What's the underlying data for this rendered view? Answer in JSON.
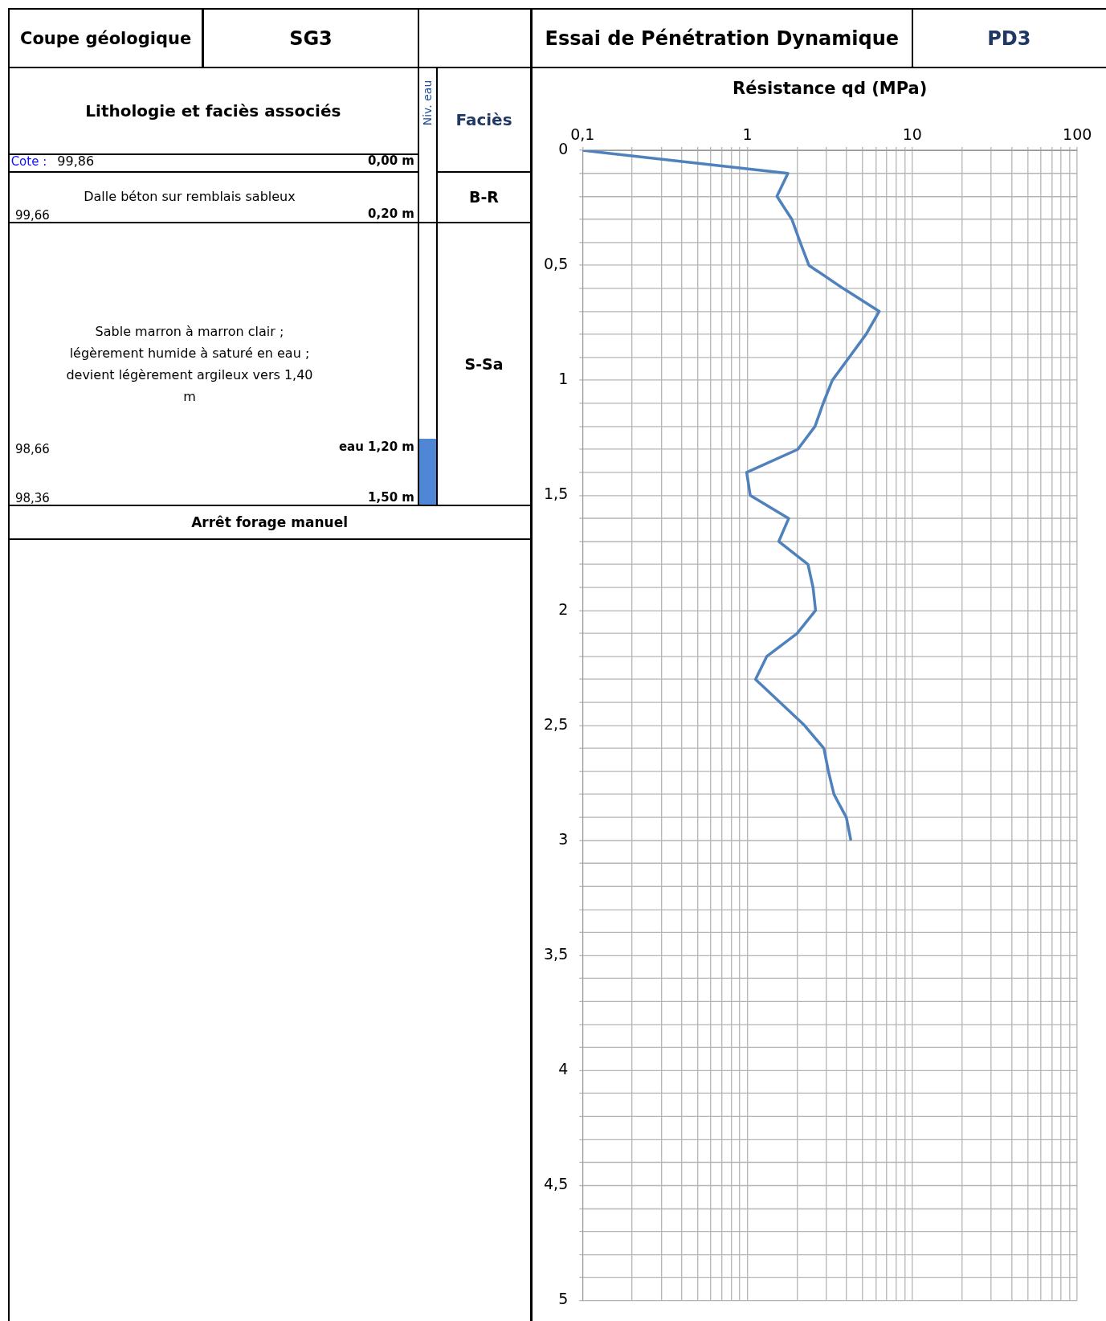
{
  "chart_data": [
    {
      "type": "other",
      "title": "Coupe géologique",
      "subtitle": "SG3",
      "annotations": [
        "Lithologie et faciès associés",
        "Niv. eau",
        "Faciès",
        "Cote :",
        "99,86",
        "0,00 m",
        "Dalle béton sur remblais sableux",
        "B-R",
        "99,66",
        "0,20 m",
        "Sable marron à marron clair ; légèrement humide à saturé en eau ; devient légèrement argileux vers 1,40 m",
        "S-Sa",
        "98,66",
        "eau 1,20 m",
        "98,36",
        "1,50 m",
        "Arrêt forage manuel"
      ]
    },
    {
      "type": "line",
      "title": "Essai de Pénétration Dynamique",
      "subtitle": "PD3",
      "xlabel": "Résistance qd (MPa)",
      "log": "x",
      "grid": true,
      "legend": false,
      "marker": "none",
      "line_style": "solid",
      "xlim": [
        0.1,
        100
      ],
      "ylim": [
        5,
        0
      ],
      "xticks": [
        {
          "value": 0.1,
          "label": "0,1"
        },
        {
          "value": 0.2,
          "label": null
        },
        {
          "value": 0.3,
          "label": null
        },
        {
          "value": 0.4,
          "label": null
        },
        {
          "value": 0.5,
          "label": null
        },
        {
          "value": 0.6,
          "label": null
        },
        {
          "value": 0.7,
          "label": null
        },
        {
          "value": 0.8,
          "label": null
        },
        {
          "value": 0.9,
          "label": null
        },
        1,
        {
          "value": 2,
          "label": null
        },
        {
          "value": 3,
          "label": null
        },
        {
          "value": 4,
          "label": null
        },
        {
          "value": 5,
          "label": null
        },
        {
          "value": 6,
          "label": null
        },
        {
          "value": 7,
          "label": null
        },
        {
          "value": 8,
          "label": null
        },
        {
          "value": 9,
          "label": null
        },
        10,
        {
          "value": 20,
          "label": null
        },
        {
          "value": 30,
          "label": null
        },
        {
          "value": 40,
          "label": null
        },
        {
          "value": 50,
          "label": null
        },
        {
          "value": 60,
          "label": null
        },
        {
          "value": 70,
          "label": null
        },
        {
          "value": 80,
          "label": null
        },
        {
          "value": 90,
          "label": null
        },
        100
      ],
      "yticks": [
        0,
        {
          "value": 0.1,
          "label": null
        },
        {
          "value": 0.2,
          "label": null
        },
        {
          "value": 0.3,
          "label": null
        },
        {
          "value": 0.4,
          "label": null
        },
        {
          "value": 0.5,
          "label": "0,5"
        },
        {
          "value": 0.6,
          "label": null
        },
        {
          "value": 0.7,
          "label": null
        },
        {
          "value": 0.8,
          "label": null
        },
        {
          "value": 0.9,
          "label": null
        },
        1,
        {
          "value": 1.1,
          "label": null
        },
        {
          "value": 1.2,
          "label": null
        },
        {
          "value": 1.3,
          "label": null
        },
        {
          "value": 1.4,
          "label": null
        },
        {
          "value": 1.5,
          "label": "1,5"
        },
        {
          "value": 1.6,
          "label": null
        },
        {
          "value": 1.7,
          "label": null
        },
        {
          "value": 1.8,
          "label": null
        },
        {
          "value": 1.9,
          "label": null
        },
        2,
        {
          "value": 2.1,
          "label": null
        },
        {
          "value": 2.2,
          "label": null
        },
        {
          "value": 2.3,
          "label": null
        },
        {
          "value": 2.4,
          "label": null
        },
        {
          "value": 2.5,
          "label": "2,5"
        },
        {
          "value": 2.6,
          "label": null
        },
        {
          "value": 2.7,
          "label": null
        },
        {
          "value": 2.8,
          "label": null
        },
        {
          "value": 2.9,
          "label": null
        },
        3,
        {
          "value": 3.1,
          "label": null
        },
        {
          "value": 3.2,
          "label": null
        },
        {
          "value": 3.3,
          "label": null
        },
        {
          "value": 3.4,
          "label": null
        },
        {
          "value": 3.5,
          "label": "3,5"
        },
        {
          "value": 3.6,
          "label": null
        },
        {
          "value": 3.7,
          "label": null
        },
        {
          "value": 3.8,
          "label": null
        },
        {
          "value": 3.9,
          "label": null
        },
        4,
        {
          "value": 4.1,
          "label": null
        },
        {
          "value": 4.2,
          "label": null
        },
        {
          "value": 4.3,
          "label": null
        },
        {
          "value": 4.4,
          "label": null
        },
        {
          "value": 4.5,
          "label": "4,5"
        },
        {
          "value": 4.6,
          "label": null
        },
        {
          "value": 4.7,
          "label": null
        },
        {
          "value": 4.8,
          "label": null
        },
        {
          "value": 4.9,
          "label": null
        },
        5
      ],
      "series": [
        {
          "color": "#4f81bd",
          "x": [
            0.1,
            1.76,
            1.51,
            1.86,
            2.09,
            2.36,
            3.8,
            6.3,
            5.24,
            4.14,
            3.27,
            2.88,
            2.57,
            2.02,
            0.99,
            1.04,
            1.78,
            1.55,
            2.33,
            2.5,
            2.59,
            2.0,
            1.31,
            1.12,
            1.58,
            2.22,
            2.91,
            3.1,
            3.35,
            3.98,
            4.24
          ],
          "values": [
            0,
            0.1,
            0.2,
            0.3,
            0.4,
            0.5,
            0.6,
            0.7,
            0.8,
            0.9,
            1.0,
            1.1,
            1.2,
            1.3,
            1.4,
            1.5,
            1.6,
            1.7,
            1.8,
            1.9,
            2.0,
            2.1,
            2.2,
            2.3,
            2.4,
            2.5,
            2.6,
            2.7,
            2.8,
            2.9,
            3.0
          ]
        }
      ]
    }
  ]
}
